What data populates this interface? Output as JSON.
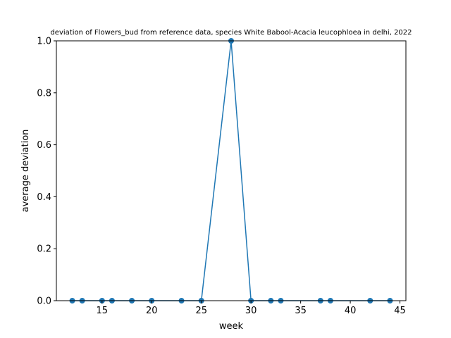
{
  "chart_data": {
    "type": "line",
    "title": "deviation of Flowers_bud from reference data, species White Babool-Acacia leucophloea in delhi, 2022",
    "xlabel": "week",
    "ylabel": "average deviation",
    "xlim": [
      10.4,
      45.6
    ],
    "ylim": [
      0,
      1.0
    ],
    "xticks": [
      15,
      20,
      25,
      30,
      35,
      40,
      45
    ],
    "yticks": [
      0.0,
      0.2,
      0.4,
      0.6,
      0.8,
      1.0
    ],
    "xtick_labels": [
      "15",
      "20",
      "25",
      "30",
      "35",
      "40",
      "45"
    ],
    "ytick_labels": [
      "0.0",
      "0.2",
      "0.4",
      "0.6",
      "0.8",
      "1.0"
    ],
    "grid": false,
    "series": [
      {
        "color": "#1f77b4",
        "marker": "circle",
        "x": [
          12,
          13,
          15,
          16,
          18,
          20,
          23,
          25,
          28,
          30,
          32,
          33,
          37,
          38,
          42,
          44
        ],
        "y": [
          0,
          0,
          0,
          0,
          0,
          0,
          0,
          0,
          1,
          0,
          0,
          0,
          0,
          0,
          0,
          0
        ]
      }
    ],
    "highlight_color": "#d62728"
  }
}
